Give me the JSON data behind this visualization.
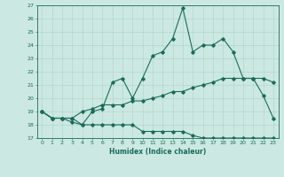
{
  "xlabel": "Humidex (Indice chaleur)",
  "background_color": "#cce8e2",
  "line_color": "#1a6b5a",
  "grid_color": "#aad4cc",
  "xlim": [
    -0.5,
    23.5
  ],
  "ylim": [
    17,
    27
  ],
  "yticks": [
    17,
    18,
    19,
    20,
    21,
    22,
    23,
    24,
    25,
    26,
    27
  ],
  "xticks": [
    0,
    1,
    2,
    3,
    4,
    5,
    6,
    7,
    8,
    9,
    10,
    11,
    12,
    13,
    14,
    15,
    16,
    17,
    18,
    19,
    20,
    21,
    22,
    23
  ],
  "series1_x": [
    0,
    1,
    2,
    3,
    4,
    5,
    6,
    7,
    8,
    9,
    10,
    11,
    12,
    13,
    14,
    15,
    16,
    17,
    18,
    19,
    20,
    21,
    22,
    23
  ],
  "series1_y": [
    19.0,
    18.5,
    18.5,
    18.5,
    18.0,
    19.0,
    19.2,
    21.2,
    21.5,
    20.0,
    21.5,
    23.2,
    23.5,
    24.5,
    26.8,
    23.5,
    24.0,
    24.0,
    24.5,
    23.5,
    21.5,
    21.5,
    20.2,
    18.5
  ],
  "series2_x": [
    0,
    1,
    2,
    3,
    4,
    5,
    6,
    7,
    8,
    9,
    10,
    11,
    12,
    13,
    14,
    15,
    16,
    17,
    18,
    19,
    20,
    21,
    22,
    23
  ],
  "series2_y": [
    19.0,
    18.5,
    18.5,
    18.5,
    19.0,
    19.2,
    19.5,
    19.5,
    19.5,
    19.8,
    19.8,
    20.0,
    20.2,
    20.5,
    20.5,
    20.8,
    21.0,
    21.2,
    21.5,
    21.5,
    21.5,
    21.5,
    21.5,
    21.2
  ],
  "series3_x": [
    0,
    1,
    2,
    3,
    4,
    5,
    6,
    7,
    8,
    9,
    10,
    11,
    12,
    13,
    14,
    15,
    16,
    17,
    18,
    19,
    20,
    21,
    22,
    23
  ],
  "series3_y": [
    19.0,
    18.5,
    18.5,
    18.2,
    18.0,
    18.0,
    18.0,
    18.0,
    18.0,
    18.0,
    17.5,
    17.5,
    17.5,
    17.5,
    17.5,
    17.2,
    17.0,
    17.0,
    17.0,
    17.0,
    17.0,
    17.0,
    17.0,
    17.0
  ]
}
